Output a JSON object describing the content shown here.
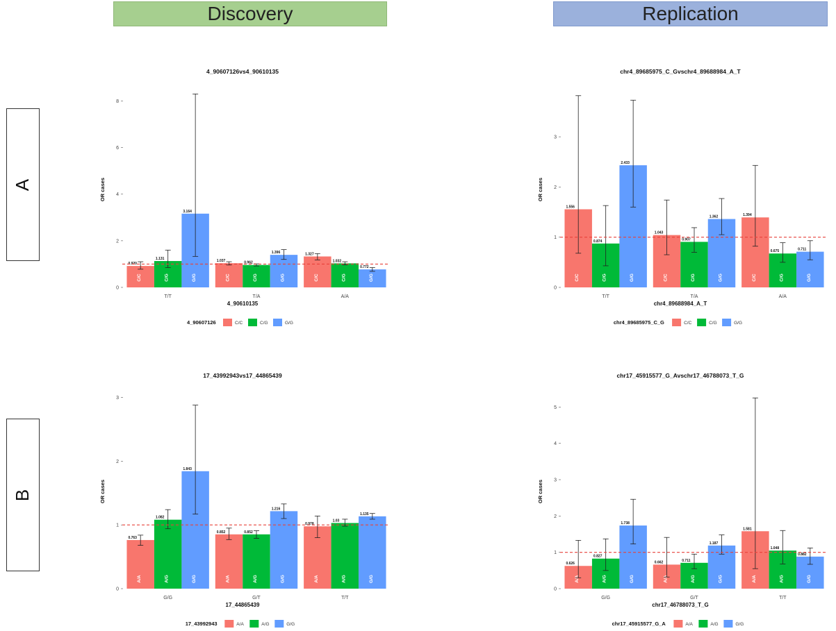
{
  "headers": {
    "discovery": "Discovery",
    "replication": "Replication"
  },
  "row_labels": {
    "a": "A",
    "b": "B"
  },
  "common": {
    "ylabel": "OR cases"
  },
  "colors": {
    "red": "#f8766d",
    "green": "#00ba38",
    "blue": "#619cff",
    "refline": "#e8413a"
  },
  "chart_data": [
    {
      "type": "bar",
      "title": "4_90607126vs4_90610135",
      "xlabel": "4_90610135",
      "ylabel": "OR cases",
      "ylim": [
        0,
        8.4
      ],
      "yticks": [
        0,
        2,
        4,
        6,
        8
      ],
      "categories": [
        "T/T",
        "T/A",
        "A/A"
      ],
      "legend_title": "4_90607126",
      "series": [
        {
          "name": "C/C",
          "values": [
            0.92,
            1.037,
            1.327
          ],
          "ci_low": [
            0.78,
            0.96,
            1.18
          ],
          "ci_high": [
            1.1,
            1.1,
            1.45
          ],
          "labels": [
            "0.920",
            "1.037",
            "1.327"
          ]
        },
        {
          "name": "C/G",
          "values": [
            1.131,
            0.962,
            1.032
          ],
          "ci_low": [
            0.85,
            0.92,
            0.97
          ],
          "ci_high": [
            1.6,
            1.01,
            1.1
          ],
          "labels": [
            "1.131",
            "0.962",
            "1.032"
          ]
        },
        {
          "name": "G/G",
          "values": [
            3.164,
            1.396,
            0.772
          ],
          "ci_low": [
            1.33,
            1.2,
            0.69
          ],
          "ci_high": [
            8.3,
            1.62,
            0.85
          ],
          "labels": [
            "3.164",
            "1.396",
            "0.772"
          ]
        }
      ],
      "refline": 1
    },
    {
      "type": "bar",
      "title": "chr4_89685975_C_Gvschr4_89688984_A_T",
      "xlabel": "chr4_89688984_A_T",
      "ylabel": "OR cases",
      "ylim": [
        0,
        3.9
      ],
      "yticks": [
        0,
        1,
        2,
        3
      ],
      "categories": [
        "T/T",
        "T/A",
        "A/A"
      ],
      "legend_title": "chr4_89685975_C_G",
      "series": [
        {
          "name": "C/C",
          "values": [
            1.556,
            1.043,
            1.394
          ],
          "ci_low": [
            0.68,
            0.65,
            0.82
          ],
          "ci_high": [
            3.82,
            1.74,
            2.43
          ],
          "labels": [
            "1.556",
            "1.043",
            "1.394"
          ]
        },
        {
          "name": "C/G",
          "values": [
            0.874,
            0.907,
            0.675
          ],
          "ci_low": [
            0.43,
            0.7,
            0.5
          ],
          "ci_high": [
            1.63,
            1.19,
            0.89
          ],
          "labels": [
            "0.874",
            "0.907",
            "0.675"
          ]
        },
        {
          "name": "G/G",
          "values": [
            2.433,
            1.362,
            0.711
          ],
          "ci_low": [
            1.6,
            1.05,
            0.55
          ],
          "ci_high": [
            3.73,
            1.77,
            0.93
          ],
          "labels": [
            "2.433",
            "1.362",
            "0.711"
          ]
        }
      ],
      "refline": 1
    },
    {
      "type": "bar",
      "title": "17_43992943vs17_44865439",
      "xlabel": "17_44865439",
      "ylabel": "OR cases",
      "ylim": [
        0,
        3.05
      ],
      "yticks": [
        0,
        1,
        2,
        3
      ],
      "categories": [
        "G/G",
        "G/T",
        "T/T"
      ],
      "legend_title": "17_43992943",
      "series": [
        {
          "name": "A/A",
          "values": [
            0.763,
            0.852,
            0.978
          ],
          "ci_low": [
            0.68,
            0.77,
            0.8
          ],
          "ci_high": [
            0.84,
            0.95,
            1.14
          ],
          "labels": [
            "0.763",
            "0.852",
            "0.978"
          ]
        },
        {
          "name": "A/G",
          "values": [
            1.082,
            0.852,
            1.03
          ],
          "ci_low": [
            0.94,
            0.79,
            0.98
          ],
          "ci_high": [
            1.24,
            0.91,
            1.09
          ],
          "labels": [
            "1.082",
            "0.852",
            "1.03"
          ]
        },
        {
          "name": "G/G",
          "values": [
            1.843,
            1.216,
            1.135
          ],
          "ci_low": [
            1.17,
            1.1,
            1.09
          ],
          "ci_high": [
            2.88,
            1.33,
            1.18
          ],
          "labels": [
            "1.843",
            "1.216",
            "1.135"
          ]
        }
      ],
      "refline": 1
    },
    {
      "type": "bar",
      "title": "chr17_45915577_G_Avschr17_46788073_T_G",
      "xlabel": "chr17_46788073_T_G",
      "ylabel": "OR cases",
      "ylim": [
        0,
        5.35
      ],
      "yticks": [
        0,
        1,
        2,
        3,
        4,
        5
      ],
      "categories": [
        "G/G",
        "G/T",
        "T/T"
      ],
      "legend_title": "chr17_45915577_G_A",
      "series": [
        {
          "name": "A/A",
          "values": [
            0.626,
            0.662,
            1.581
          ],
          "ci_low": [
            0.3,
            0.32,
            0.55
          ],
          "ci_high": [
            1.33,
            1.41,
            5.25
          ],
          "labels": [
            "0.626",
            "0.662",
            "1.581"
          ]
        },
        {
          "name": "A/G",
          "values": [
            0.827,
            0.711,
            1.048
          ],
          "ci_low": [
            0.5,
            0.55,
            0.68
          ],
          "ci_high": [
            1.37,
            0.95,
            1.6
          ],
          "labels": [
            "0.827",
            "0.711",
            "1.048"
          ]
        },
        {
          "name": "G/G",
          "values": [
            1.738,
            1.187,
            0.882
          ],
          "ci_low": [
            1.23,
            0.95,
            0.67
          ],
          "ci_high": [
            2.46,
            1.48,
            1.12
          ],
          "labels": [
            "1.738",
            "1.187",
            "0.882"
          ]
        }
      ],
      "refline": 1
    }
  ]
}
